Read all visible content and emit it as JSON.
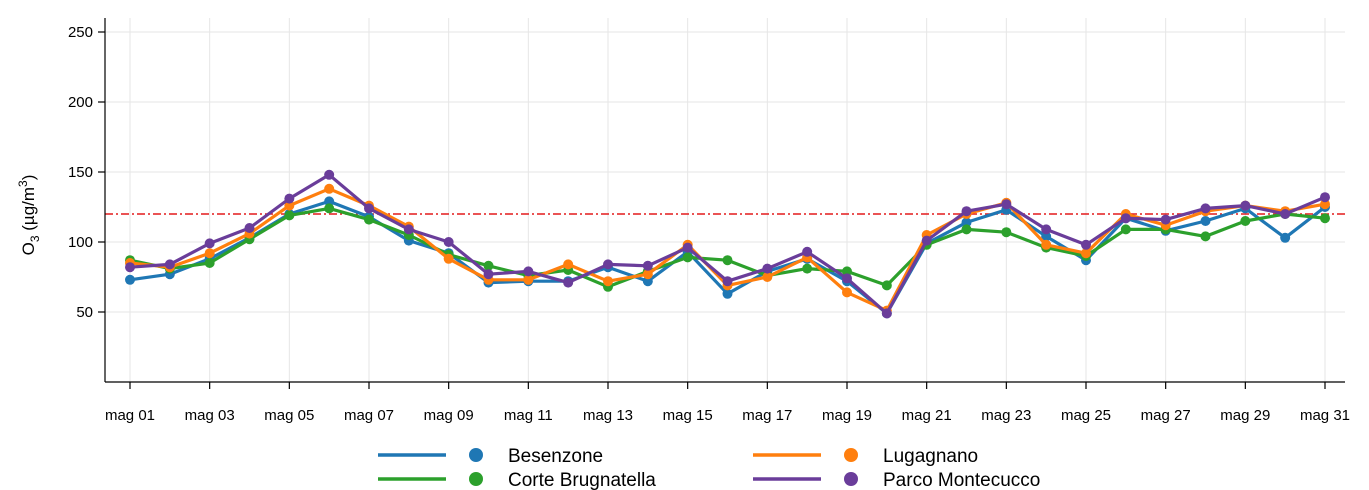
{
  "chart_data": {
    "type": "line",
    "ylabel": {
      "base": "O",
      "sub": "3",
      "unit_pre": " (µg/m",
      "sup": "3",
      "unit_post": ")"
    },
    "ylim": [
      0,
      260
    ],
    "yticks": [
      50,
      100,
      150,
      200,
      250
    ],
    "grid": true,
    "threshold": {
      "value": 120,
      "color": "#e31a1c",
      "style": "dash-dot"
    },
    "x": [
      1,
      2,
      3,
      4,
      5,
      6,
      7,
      8,
      9,
      10,
      11,
      12,
      13,
      14,
      15,
      16,
      17,
      18,
      19,
      20,
      21,
      22,
      23,
      24,
      25,
      26,
      27,
      28,
      29,
      30,
      31
    ],
    "xticks": [
      {
        "day": 1,
        "label": "mag 01"
      },
      {
        "day": 3,
        "label": "mag 03"
      },
      {
        "day": 5,
        "label": "mag 05"
      },
      {
        "day": 7,
        "label": "mag 07"
      },
      {
        "day": 9,
        "label": "mag 09"
      },
      {
        "day": 11,
        "label": "mag 11"
      },
      {
        "day": 13,
        "label": "mag 13"
      },
      {
        "day": 15,
        "label": "mag 15"
      },
      {
        "day": 17,
        "label": "mag 17"
      },
      {
        "day": 19,
        "label": "mag 19"
      },
      {
        "day": 21,
        "label": "mag 21"
      },
      {
        "day": 23,
        "label": "mag 23"
      },
      {
        "day": 25,
        "label": "mag 25"
      },
      {
        "day": 27,
        "label": "mag 27"
      },
      {
        "day": 29,
        "label": "mag 29"
      },
      {
        "day": 31,
        "label": "mag 31"
      }
    ],
    "legend_position": "bottom",
    "series": [
      {
        "name": "Besenzone",
        "color": "#1f77b4",
        "values": [
          73,
          77,
          88,
          103,
          120,
          129,
          118,
          101,
          92,
          71,
          72,
          72,
          82,
          72,
          93,
          63,
          79,
          88,
          72,
          49,
          99,
          114,
          123,
          104,
          87,
          117,
          108,
          115,
          124,
          103,
          125
        ]
      },
      {
        "name": "Corte Brugnatella",
        "color": "#2ca02c",
        "values": [
          87,
          81,
          85,
          102,
          119,
          124,
          116,
          105,
          91,
          83,
          76,
          80,
          68,
          79,
          89,
          87,
          76,
          81,
          79,
          69,
          98,
          109,
          107,
          96,
          90,
          109,
          109,
          104,
          115,
          120,
          117
        ]
      },
      {
        "name": "Lugagnano",
        "color": "#ff7f0e",
        "values": [
          85,
          82,
          92,
          106,
          126,
          138,
          126,
          111,
          88,
          73,
          73,
          84,
          72,
          77,
          98,
          69,
          75,
          89,
          64,
          51,
          105,
          120,
          128,
          98,
          92,
          120,
          112,
          122,
          126,
          122,
          127
        ]
      },
      {
        "name": "Parco Montecucco",
        "color": "#6a3d9a",
        "values": [
          82,
          84,
          99,
          110,
          131,
          148,
          124,
          109,
          100,
          77,
          79,
          71,
          84,
          83,
          96,
          72,
          81,
          93,
          74,
          49,
          101,
          122,
          127,
          109,
          98,
          117,
          116,
          124,
          126,
          120,
          132
        ]
      }
    ]
  }
}
